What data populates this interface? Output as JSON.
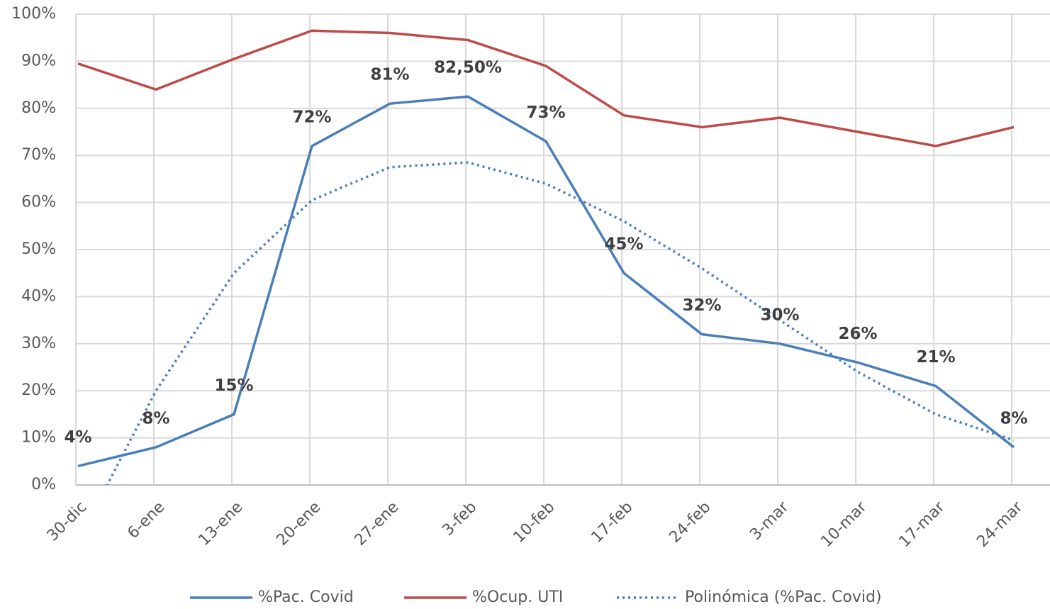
{
  "chart_data": {
    "type": "line",
    "categories": [
      "30-dic",
      "6-ene",
      "13-ene",
      "20-ene",
      "27-ene",
      "3-feb",
      "10-feb",
      "17-feb",
      "24-feb",
      "3-mar",
      "10-mar",
      "17-mar",
      "24-mar"
    ],
    "series": [
      {
        "name": "%Pac. Covid",
        "color": "#4a7ebb",
        "dash": "solid",
        "values": [
          4,
          8,
          15,
          72,
          81,
          82.5,
          73,
          45,
          32,
          30,
          26,
          21,
          8
        ],
        "value_labels": [
          "4%",
          "8%",
          "15%",
          "72%",
          "81%",
          "82,50%",
          "73%",
          "45%",
          "32%",
          "30%",
          "26%",
          "21%",
          "8%"
        ]
      },
      {
        "name": "%Ocup. UTI",
        "color": "#be4b48",
        "dash": "solid",
        "values": [
          89.5,
          84,
          90.5,
          96.5,
          96,
          94.5,
          89,
          78.5,
          76,
          78,
          75,
          72,
          76
        ]
      },
      {
        "name": "Polinómica (%Pac. Covid)",
        "color": "#4a7ebb",
        "dash": "dotted",
        "values": [
          -12,
          20,
          45,
          60.5,
          67.5,
          68.5,
          64,
          56,
          46,
          35,
          24,
          15,
          9.5
        ]
      }
    ],
    "ylim": [
      0,
      100
    ],
    "yticks": [
      {
        "value": 0,
        "label": "0%"
      },
      {
        "value": 10,
        "label": "10%"
      },
      {
        "value": 20,
        "label": "20%"
      },
      {
        "value": 30,
        "label": "30%"
      },
      {
        "value": 40,
        "label": "40%"
      },
      {
        "value": 50,
        "label": "50%"
      },
      {
        "value": 60,
        "label": "60%"
      },
      {
        "value": 70,
        "label": "70%"
      },
      {
        "value": 80,
        "label": "80%"
      },
      {
        "value": 90,
        "label": "90%"
      },
      {
        "value": 100,
        "label": "100%"
      }
    ],
    "grid": true,
    "legend": "bottom"
  }
}
